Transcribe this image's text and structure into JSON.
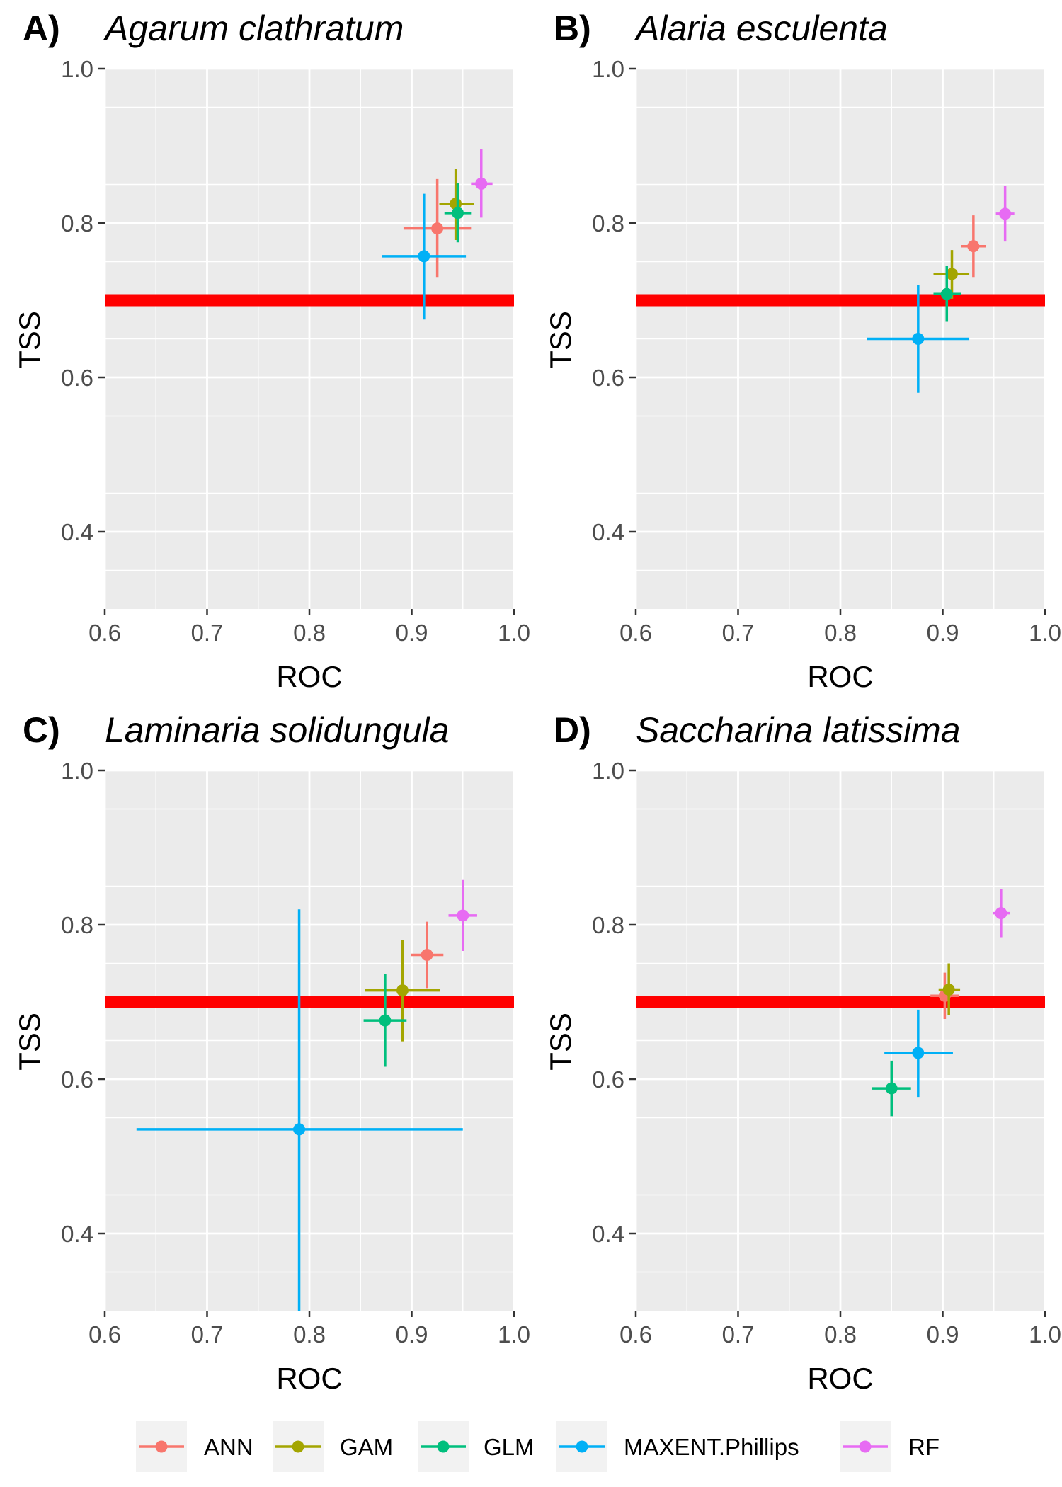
{
  "legend": {
    "items": [
      {
        "label": "ANN",
        "color": "#F8766D"
      },
      {
        "label": "GAM",
        "color": "#A3A500"
      },
      {
        "label": "GLM",
        "color": "#00BF7D"
      },
      {
        "label": "MAXENT.Phillips",
        "color": "#00B0F6"
      },
      {
        "label": "RF",
        "color": "#E76BF3"
      }
    ]
  },
  "colors": {
    "panel_background": "#EBEBEB",
    "grid": "#FFFFFF",
    "threshold_line": "#FF0000"
  },
  "chart_data": [
    {
      "type": "scatter",
      "panel_label": "A)",
      "title": "Agarum clathratum",
      "xlabel": "ROC",
      "ylabel": "TSS",
      "xlim": [
        0.6,
        1.0
      ],
      "ylim": [
        0.3,
        1.0
      ],
      "x_ticks": [
        "0.6",
        "0.7",
        "0.8",
        "0.9",
        "1.0"
      ],
      "y_ticks": [
        "0.4",
        "0.6",
        "0.8",
        "1.0"
      ],
      "threshold": 0.7,
      "grid": true,
      "legend_position": "bottom",
      "series": [
        {
          "name": "ANN",
          "x": 0.925,
          "y": 0.793,
          "x_lo": 0.892,
          "x_hi": 0.958,
          "y_lo": 0.73,
          "y_hi": 0.857
        },
        {
          "name": "GAM",
          "x": 0.943,
          "y": 0.825,
          "x_lo": 0.927,
          "x_hi": 0.961,
          "y_lo": 0.778,
          "y_hi": 0.87
        },
        {
          "name": "GLM",
          "x": 0.945,
          "y": 0.813,
          "x_lo": 0.932,
          "x_hi": 0.958,
          "y_lo": 0.775,
          "y_hi": 0.852
        },
        {
          "name": "MAXENT.Phillips",
          "x": 0.912,
          "y": 0.757,
          "x_lo": 0.871,
          "x_hi": 0.953,
          "y_lo": 0.675,
          "y_hi": 0.838
        },
        {
          "name": "RF",
          "x": 0.968,
          "y": 0.851,
          "x_lo": 0.958,
          "x_hi": 0.979,
          "y_lo": 0.807,
          "y_hi": 0.896
        }
      ]
    },
    {
      "type": "scatter",
      "panel_label": "B)",
      "title": "Alaria esculenta",
      "xlabel": "ROC",
      "ylabel": "TSS",
      "xlim": [
        0.6,
        1.0
      ],
      "ylim": [
        0.3,
        1.0
      ],
      "x_ticks": [
        "0.6",
        "0.7",
        "0.8",
        "0.9",
        "1.0"
      ],
      "y_ticks": [
        "0.4",
        "0.6",
        "0.8",
        "1.0"
      ],
      "threshold": 0.7,
      "grid": true,
      "legend_position": "bottom",
      "series": [
        {
          "name": "ANN",
          "x": 0.93,
          "y": 0.77,
          "x_lo": 0.918,
          "x_hi": 0.942,
          "y_lo": 0.73,
          "y_hi": 0.81
        },
        {
          "name": "GAM",
          "x": 0.909,
          "y": 0.734,
          "x_lo": 0.891,
          "x_hi": 0.926,
          "y_lo": 0.702,
          "y_hi": 0.765
        },
        {
          "name": "GLM",
          "x": 0.904,
          "y": 0.708,
          "x_lo": 0.891,
          "x_hi": 0.918,
          "y_lo": 0.672,
          "y_hi": 0.745
        },
        {
          "name": "MAXENT.Phillips",
          "x": 0.876,
          "y": 0.65,
          "x_lo": 0.826,
          "x_hi": 0.926,
          "y_lo": 0.58,
          "y_hi": 0.72
        },
        {
          "name": "RF",
          "x": 0.961,
          "y": 0.812,
          "x_lo": 0.952,
          "x_hi": 0.97,
          "y_lo": 0.776,
          "y_hi": 0.848
        }
      ]
    },
    {
      "type": "scatter",
      "panel_label": "C)",
      "title": "Laminaria solidungula",
      "xlabel": "ROC",
      "ylabel": "TSS",
      "xlim": [
        0.6,
        1.0
      ],
      "ylim": [
        0.3,
        1.0
      ],
      "x_ticks": [
        "0.6",
        "0.7",
        "0.8",
        "0.9",
        "1.0"
      ],
      "y_ticks": [
        "0.4",
        "0.6",
        "0.8",
        "1.0"
      ],
      "threshold": 0.7,
      "grid": true,
      "legend_position": "bottom",
      "series": [
        {
          "name": "ANN",
          "x": 0.915,
          "y": 0.761,
          "x_lo": 0.899,
          "x_hi": 0.931,
          "y_lo": 0.718,
          "y_hi": 0.804
        },
        {
          "name": "GAM",
          "x": 0.891,
          "y": 0.715,
          "x_lo": 0.854,
          "x_hi": 0.928,
          "y_lo": 0.649,
          "y_hi": 0.78
        },
        {
          "name": "GLM",
          "x": 0.874,
          "y": 0.676,
          "x_lo": 0.853,
          "x_hi": 0.895,
          "y_lo": 0.616,
          "y_hi": 0.736
        },
        {
          "name": "MAXENT.Phillips",
          "x": 0.79,
          "y": 0.535,
          "x_lo": 0.631,
          "x_hi": 0.95,
          "y_lo": 0.25,
          "y_hi": 0.82
        },
        {
          "name": "RF",
          "x": 0.95,
          "y": 0.812,
          "x_lo": 0.936,
          "x_hi": 0.964,
          "y_lo": 0.766,
          "y_hi": 0.858
        }
      ]
    },
    {
      "type": "scatter",
      "panel_label": "D)",
      "title": "Saccharina latissima",
      "xlabel": "ROC",
      "ylabel": "TSS",
      "xlim": [
        0.6,
        1.0
      ],
      "ylim": [
        0.3,
        1.0
      ],
      "x_ticks": [
        "0.6",
        "0.7",
        "0.8",
        "0.9",
        "1.0"
      ],
      "y_ticks": [
        "0.4",
        "0.6",
        "0.8",
        "1.0"
      ],
      "threshold": 0.7,
      "grid": true,
      "legend_position": "bottom",
      "series": [
        {
          "name": "ANN",
          "x": 0.902,
          "y": 0.708,
          "x_lo": 0.888,
          "x_hi": 0.916,
          "y_lo": 0.678,
          "y_hi": 0.738
        },
        {
          "name": "GAM",
          "x": 0.906,
          "y": 0.716,
          "x_lo": 0.896,
          "x_hi": 0.917,
          "y_lo": 0.683,
          "y_hi": 0.75
        },
        {
          "name": "GLM",
          "x": 0.85,
          "y": 0.588,
          "x_lo": 0.831,
          "x_hi": 0.869,
          "y_lo": 0.552,
          "y_hi": 0.624
        },
        {
          "name": "MAXENT.Phillips",
          "x": 0.876,
          "y": 0.634,
          "x_lo": 0.843,
          "x_hi": 0.91,
          "y_lo": 0.577,
          "y_hi": 0.69
        },
        {
          "name": "RF",
          "x": 0.957,
          "y": 0.815,
          "x_lo": 0.949,
          "x_hi": 0.966,
          "y_lo": 0.784,
          "y_hi": 0.846
        }
      ]
    }
  ]
}
